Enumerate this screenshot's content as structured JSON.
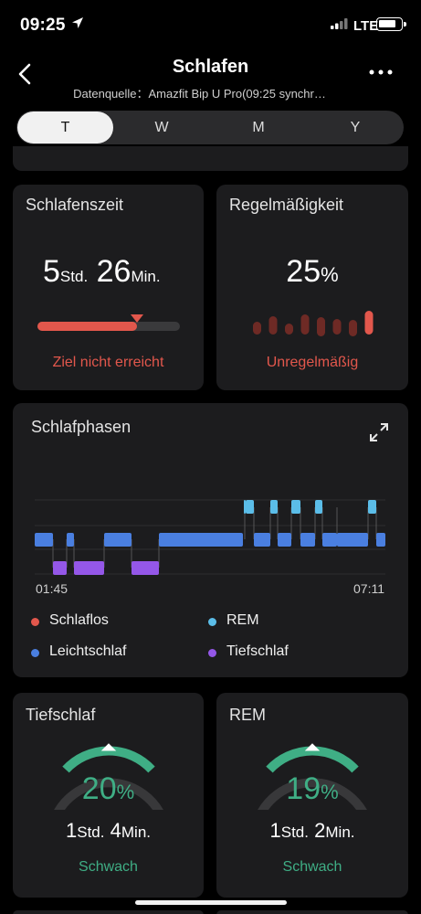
{
  "status_bar": {
    "time": "09:25",
    "network": "LTE"
  },
  "nav": {
    "title": "Schlafen",
    "subtitle": "Datenquelle：Amazfit Bip U Pro(09:25 synchr…"
  },
  "tabs": [
    {
      "label": "T",
      "active": true
    },
    {
      "label": "W",
      "active": false
    },
    {
      "label": "M",
      "active": false
    },
    {
      "label": "Y",
      "active": false
    }
  ],
  "sleep_time": {
    "title": "Schlafenszeit",
    "hours": "5",
    "hours_unit": "Std.",
    "minutes": "26",
    "minutes_unit": "Min.",
    "progress": 0.7,
    "status": "Ziel nicht erreicht"
  },
  "regularity": {
    "title": "Regelmäßigkeit",
    "value": "25",
    "unit": "%",
    "status": "Unregelmäßig",
    "bar_levels": [
      0.55,
      0.75,
      0.45,
      0.85,
      0.8,
      0.65,
      0.7,
      1.0
    ]
  },
  "sleep_phases": {
    "title": "Schlafphasen",
    "start_time": "01:45",
    "end_time": "07:11",
    "legend": [
      {
        "label": "Schlaflos",
        "color": "#e2574c"
      },
      {
        "label": "REM",
        "color": "#5bbde8"
      },
      {
        "label": "Leichtschlaf",
        "color": "#4a7fe0"
      },
      {
        "label": "Tiefschlaf",
        "color": "#9457e8"
      }
    ]
  },
  "deep_sleep": {
    "title": "Tiefschlaf",
    "percent": "20",
    "percent_unit": "%",
    "hours": "1",
    "hours_unit": "Std.",
    "minutes": "4",
    "minutes_unit": "Min.",
    "status": "Schwach"
  },
  "rem": {
    "title": "REM",
    "percent": "19",
    "percent_unit": "%",
    "hours": "1",
    "hours_unit": "Std.",
    "minutes": "2",
    "minutes_unit": "Min.",
    "status": "Schwach"
  },
  "colors": {
    "accent_red": "#e2574c",
    "accent_green": "#3fae85",
    "light_sleep": "#4a7fe0",
    "rem": "#5bbde8",
    "deep_sleep": "#9457e8"
  }
}
